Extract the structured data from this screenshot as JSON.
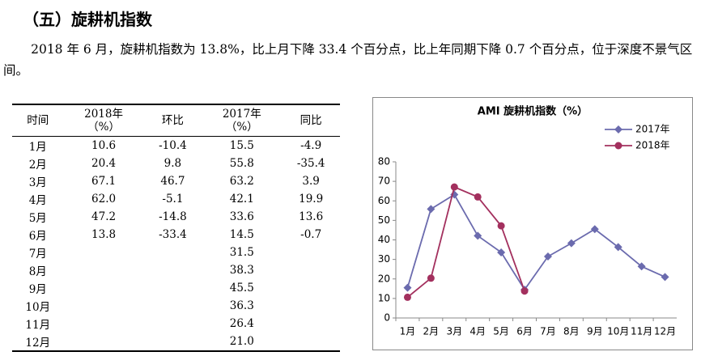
{
  "heading": "（五）旋耕机指数",
  "paragraph": "2018 年 6 月，旋耕机指数为 13.8%，比上月下降 33.4 个百分点，比上年同期下降 0.7 个百分点，位于深度不景气区间。",
  "table": {
    "headers": [
      "时间",
      "2018年\n（%）",
      "环比",
      "2017年\n（%）",
      "同比"
    ],
    "rows": [
      [
        "1月",
        "10.6",
        "-10.4",
        "15.5",
        "-4.9"
      ],
      [
        "2月",
        "20.4",
        "9.8",
        "55.8",
        "-35.4"
      ],
      [
        "3月",
        "67.1",
        "46.7",
        "63.2",
        "3.9"
      ],
      [
        "4月",
        "62.0",
        "-5.1",
        "42.1",
        "19.9"
      ],
      [
        "5月",
        "47.2",
        "-14.8",
        "33.6",
        "13.6"
      ],
      [
        "6月",
        "13.8",
        "-33.4",
        "14.5",
        "-0.7"
      ],
      [
        "7月",
        null,
        null,
        "31.5",
        null
      ],
      [
        "8月",
        null,
        null,
        "38.3",
        null
      ],
      [
        "9月",
        null,
        null,
        "45.5",
        null
      ],
      [
        "10月",
        null,
        null,
        "36.3",
        null
      ],
      [
        "11月",
        null,
        null,
        "26.4",
        null
      ],
      [
        "12月",
        null,
        null,
        "21.0",
        null
      ]
    ]
  },
  "chart_data": {
    "type": "line",
    "title": "AMI 旋耕机指数（%）",
    "categories": [
      "1月",
      "2月",
      "3月",
      "4月",
      "5月",
      "6月",
      "7月",
      "8月",
      "9月",
      "10月",
      "11月",
      "12月"
    ],
    "series": [
      {
        "name": "2017年",
        "color": "#6b6bae",
        "marker": "diamond",
        "values": [
          15.5,
          55.8,
          63.2,
          42.1,
          33.6,
          14.5,
          31.5,
          38.3,
          45.5,
          36.3,
          26.4,
          21.0
        ]
      },
      {
        "name": "2018年",
        "color": "#a3305e",
        "marker": "circle",
        "values": [
          10.6,
          20.4,
          67.1,
          62.0,
          47.2,
          13.8,
          null,
          null,
          null,
          null,
          null,
          null
        ]
      }
    ],
    "ylim": [
      0,
      80
    ],
    "yticks": [
      0,
      10,
      20,
      30,
      40,
      50,
      60,
      70,
      80
    ],
    "grid": false,
    "legend": "upper-right"
  }
}
